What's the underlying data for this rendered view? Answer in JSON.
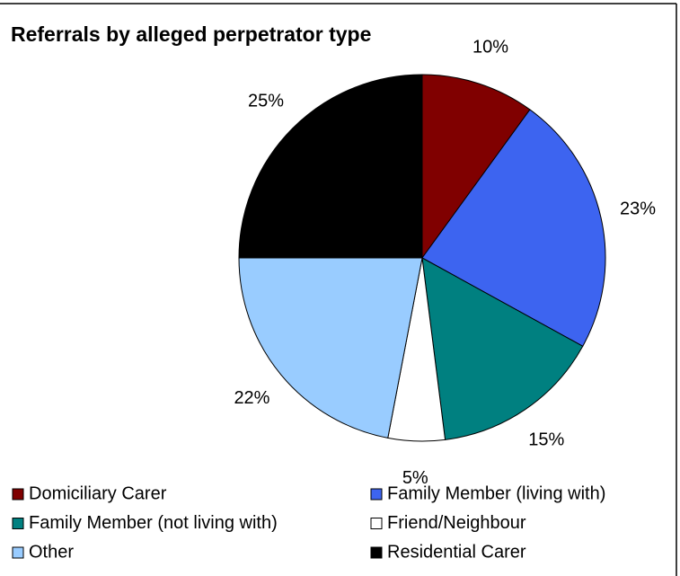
{
  "chart_data": {
    "type": "pie",
    "title": "Referrals by alleged perpetrator type",
    "categories": [
      "Domiciliary Carer",
      "Family Member (living with)",
      "Family Member (not living with)",
      "Friend/Neighbour",
      "Other",
      "Residential Carer"
    ],
    "values": [
      10,
      23,
      15,
      5,
      22,
      25
    ],
    "value_labels": [
      "10%",
      "23%",
      "15%",
      "5%",
      "22%",
      "25%"
    ],
    "colors": [
      "#800000",
      "#3d64f0",
      "#008080",
      "#ffffff",
      "#99ccff",
      "#000000"
    ],
    "legend": "bottom"
  }
}
